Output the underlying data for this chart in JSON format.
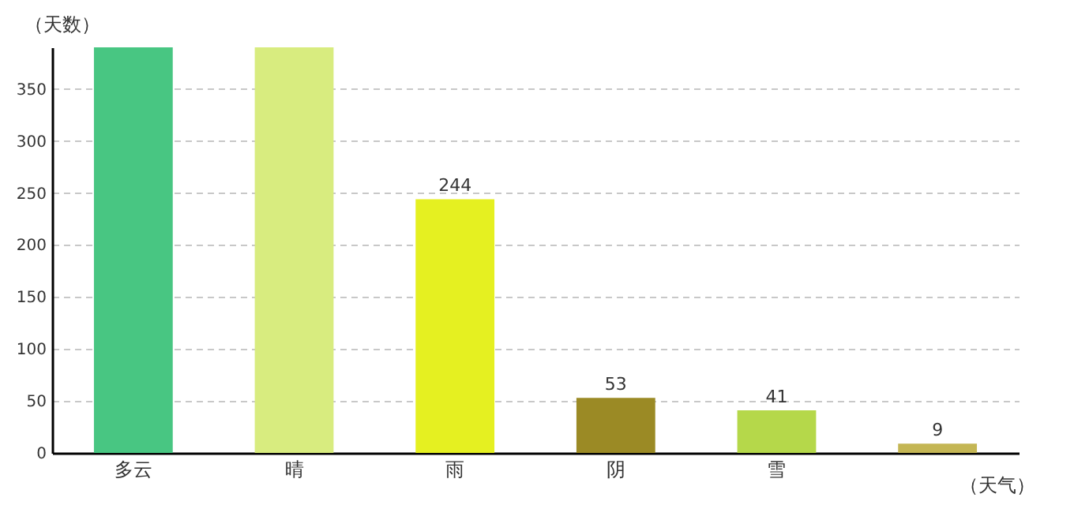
{
  "chart_data": {
    "type": "bar",
    "xlabel": "（天气）",
    "ylabel": "（天数）",
    "categories": [
      "多云",
      "晴",
      "雨",
      "阴",
      "雪",
      null
    ],
    "values": [
      390,
      390,
      244,
      53,
      41,
      9
    ],
    "value_labels": [
      null,
      null,
      "244",
      "53",
      "41",
      "9"
    ],
    "colors": [
      "#48c682",
      "#d8ec7f",
      "#e5f021",
      "#9b8a25",
      "#b5d84a",
      "#c4b654"
    ],
    "ylim": [
      0,
      390
    ],
    "yticks": [
      0,
      50,
      100,
      150,
      200,
      250,
      300,
      350
    ],
    "grid": "y"
  }
}
